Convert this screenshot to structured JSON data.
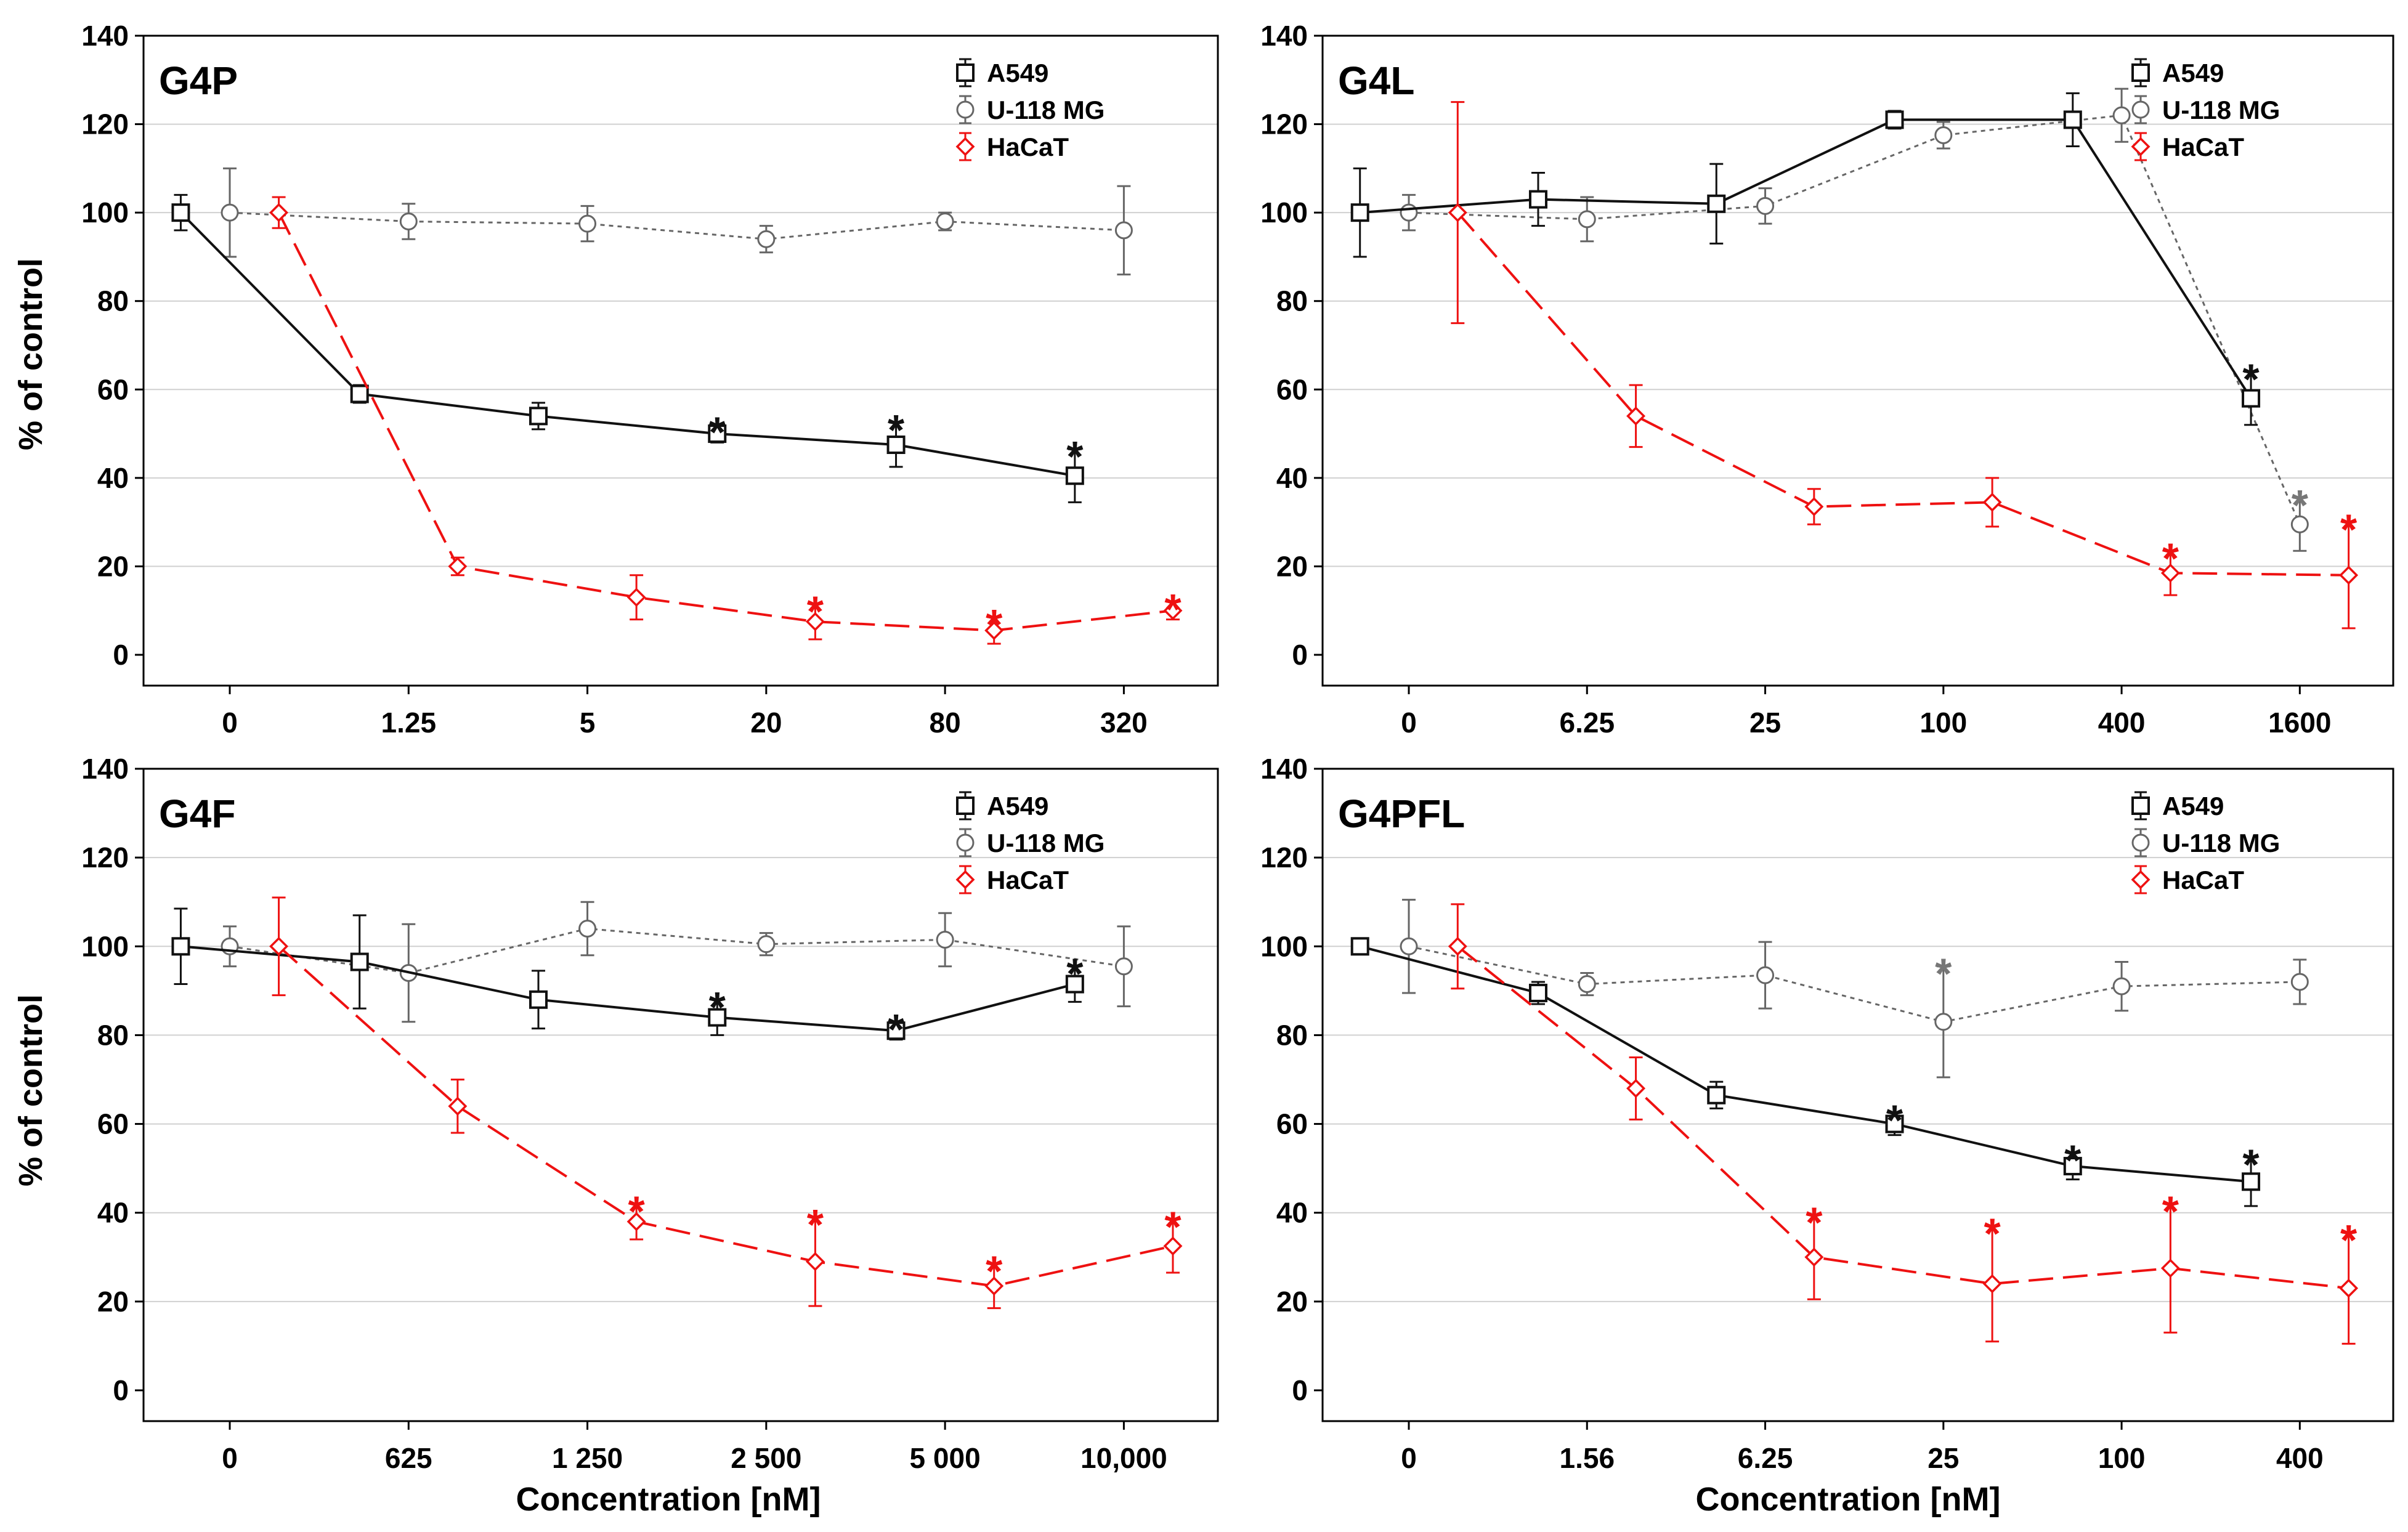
{
  "figure": {
    "xlabel": "Concentration [nM]",
    "ylabel": "% of control"
  },
  "colors": {
    "A549": "#111111",
    "U-118 MG": "#666666",
    "HaCaT": "#ee1111",
    "grid": "#d0d0d0"
  },
  "chart_data": [
    {
      "type": "line",
      "title": "G4P",
      "xlabel": "",
      "ylabel": "% of control",
      "ylim": [
        0,
        140
      ],
      "yticks": [
        0,
        20,
        40,
        60,
        80,
        100,
        120,
        140
      ],
      "categories": [
        "0",
        "1.25",
        "5",
        "20",
        "80",
        "320"
      ],
      "legend": [
        "A549",
        "U-118 MG",
        "HaCaT"
      ],
      "series": [
        {
          "name": "A549",
          "values": [
            100,
            59,
            54,
            50,
            47.5,
            40.5
          ],
          "err": [
            4,
            2,
            3,
            2,
            5,
            6
          ],
          "sig": [
            false,
            false,
            false,
            true,
            true,
            true
          ]
        },
        {
          "name": "U-118 MG",
          "values": [
            100,
            98,
            97.5,
            94,
            98,
            96
          ],
          "err": [
            10,
            4,
            4,
            3,
            2,
            10
          ],
          "sig": [
            false,
            false,
            false,
            false,
            false,
            false
          ]
        },
        {
          "name": "HaCaT",
          "values": [
            100,
            20,
            13,
            7.5,
            5.5,
            10
          ],
          "err": [
            3.5,
            2,
            5,
            4,
            3,
            2
          ],
          "sig": [
            false,
            false,
            false,
            true,
            true,
            true
          ]
        }
      ]
    },
    {
      "type": "line",
      "title": "G4L",
      "xlabel": "",
      "ylabel": "",
      "ylim": [
        0,
        140
      ],
      "yticks": [
        0,
        20,
        40,
        60,
        80,
        100,
        120,
        140
      ],
      "categories": [
        "0",
        "6.25",
        "25",
        "100",
        "400",
        "1600"
      ],
      "legend": [
        "A549",
        "U-118 MG",
        "HaCaT"
      ],
      "series": [
        {
          "name": "A549",
          "values": [
            100,
            103,
            102,
            121,
            121,
            58
          ],
          "err": [
            10,
            6,
            9,
            2,
            6,
            6
          ],
          "sig": [
            false,
            false,
            false,
            false,
            false,
            true
          ]
        },
        {
          "name": "U-118 MG",
          "values": [
            100,
            98.5,
            101.5,
            117.5,
            122,
            29.5
          ],
          "err": [
            4,
            5,
            4,
            3,
            6,
            6
          ],
          "sig": [
            false,
            false,
            false,
            false,
            false,
            true
          ]
        },
        {
          "name": "HaCaT",
          "values": [
            100,
            54,
            33.5,
            34.5,
            18.5,
            18
          ],
          "err": [
            25,
            7,
            4,
            5.5,
            5,
            12
          ],
          "sig": [
            false,
            false,
            false,
            false,
            true,
            true
          ]
        }
      ]
    },
    {
      "type": "line",
      "title": "G4F",
      "xlabel": "Concentration [nM]",
      "ylabel": "% of control",
      "ylim": [
        0,
        140
      ],
      "yticks": [
        0,
        20,
        40,
        60,
        80,
        100,
        120,
        140
      ],
      "categories": [
        "0",
        "625",
        "1 250",
        "2 500",
        "5 000",
        "10,000"
      ],
      "legend": [
        "A549",
        "U-118 MG",
        "HaCaT"
      ],
      "series": [
        {
          "name": "A549",
          "values": [
            100,
            96.5,
            88,
            84,
            81,
            91.5
          ],
          "err": [
            8.5,
            10.5,
            6.5,
            4,
            2,
            4
          ],
          "sig": [
            false,
            false,
            false,
            true,
            true,
            true
          ]
        },
        {
          "name": "U-118 MG",
          "values": [
            100,
            94,
            104,
            100.5,
            101.5,
            95.5
          ],
          "err": [
            4.5,
            11,
            6,
            2.5,
            6,
            9
          ],
          "sig": [
            false,
            false,
            false,
            false,
            false,
            false
          ]
        },
        {
          "name": "HaCaT",
          "values": [
            100,
            64,
            38,
            29,
            23.5,
            32.5
          ],
          "err": [
            11,
            6,
            4,
            10,
            5,
            6
          ],
          "sig": [
            false,
            false,
            true,
            true,
            true,
            true
          ]
        }
      ]
    },
    {
      "type": "line",
      "title": "G4PFL",
      "xlabel": "Concentration [nM]",
      "ylabel": "",
      "ylim": [
        0,
        140
      ],
      "yticks": [
        0,
        20,
        40,
        60,
        80,
        100,
        120,
        140
      ],
      "categories": [
        "0",
        "1.56",
        "6.25",
        "25",
        "100",
        "400"
      ],
      "legend": [
        "A549",
        "U-118 MG",
        "HaCaT"
      ],
      "series": [
        {
          "name": "A549",
          "values": [
            100,
            89.5,
            66.5,
            60,
            50.5,
            47
          ],
          "err": [
            1.5,
            2.5,
            3,
            2.5,
            3,
            5.5
          ],
          "sig": [
            false,
            false,
            false,
            true,
            true,
            true
          ]
        },
        {
          "name": "U-118 MG",
          "values": [
            100,
            91.5,
            93.5,
            83,
            91,
            92
          ],
          "err": [
            10.5,
            2.5,
            7.5,
            12.5,
            5.5,
            5
          ],
          "sig": [
            false,
            false,
            false,
            true,
            false,
            false
          ]
        },
        {
          "name": "HaCaT",
          "values": [
            100,
            68,
            30,
            24,
            27.5,
            23
          ],
          "err": [
            9.5,
            7,
            9.5,
            13,
            14.5,
            12.5
          ],
          "sig": [
            false,
            false,
            true,
            true,
            true,
            true
          ]
        }
      ]
    }
  ]
}
